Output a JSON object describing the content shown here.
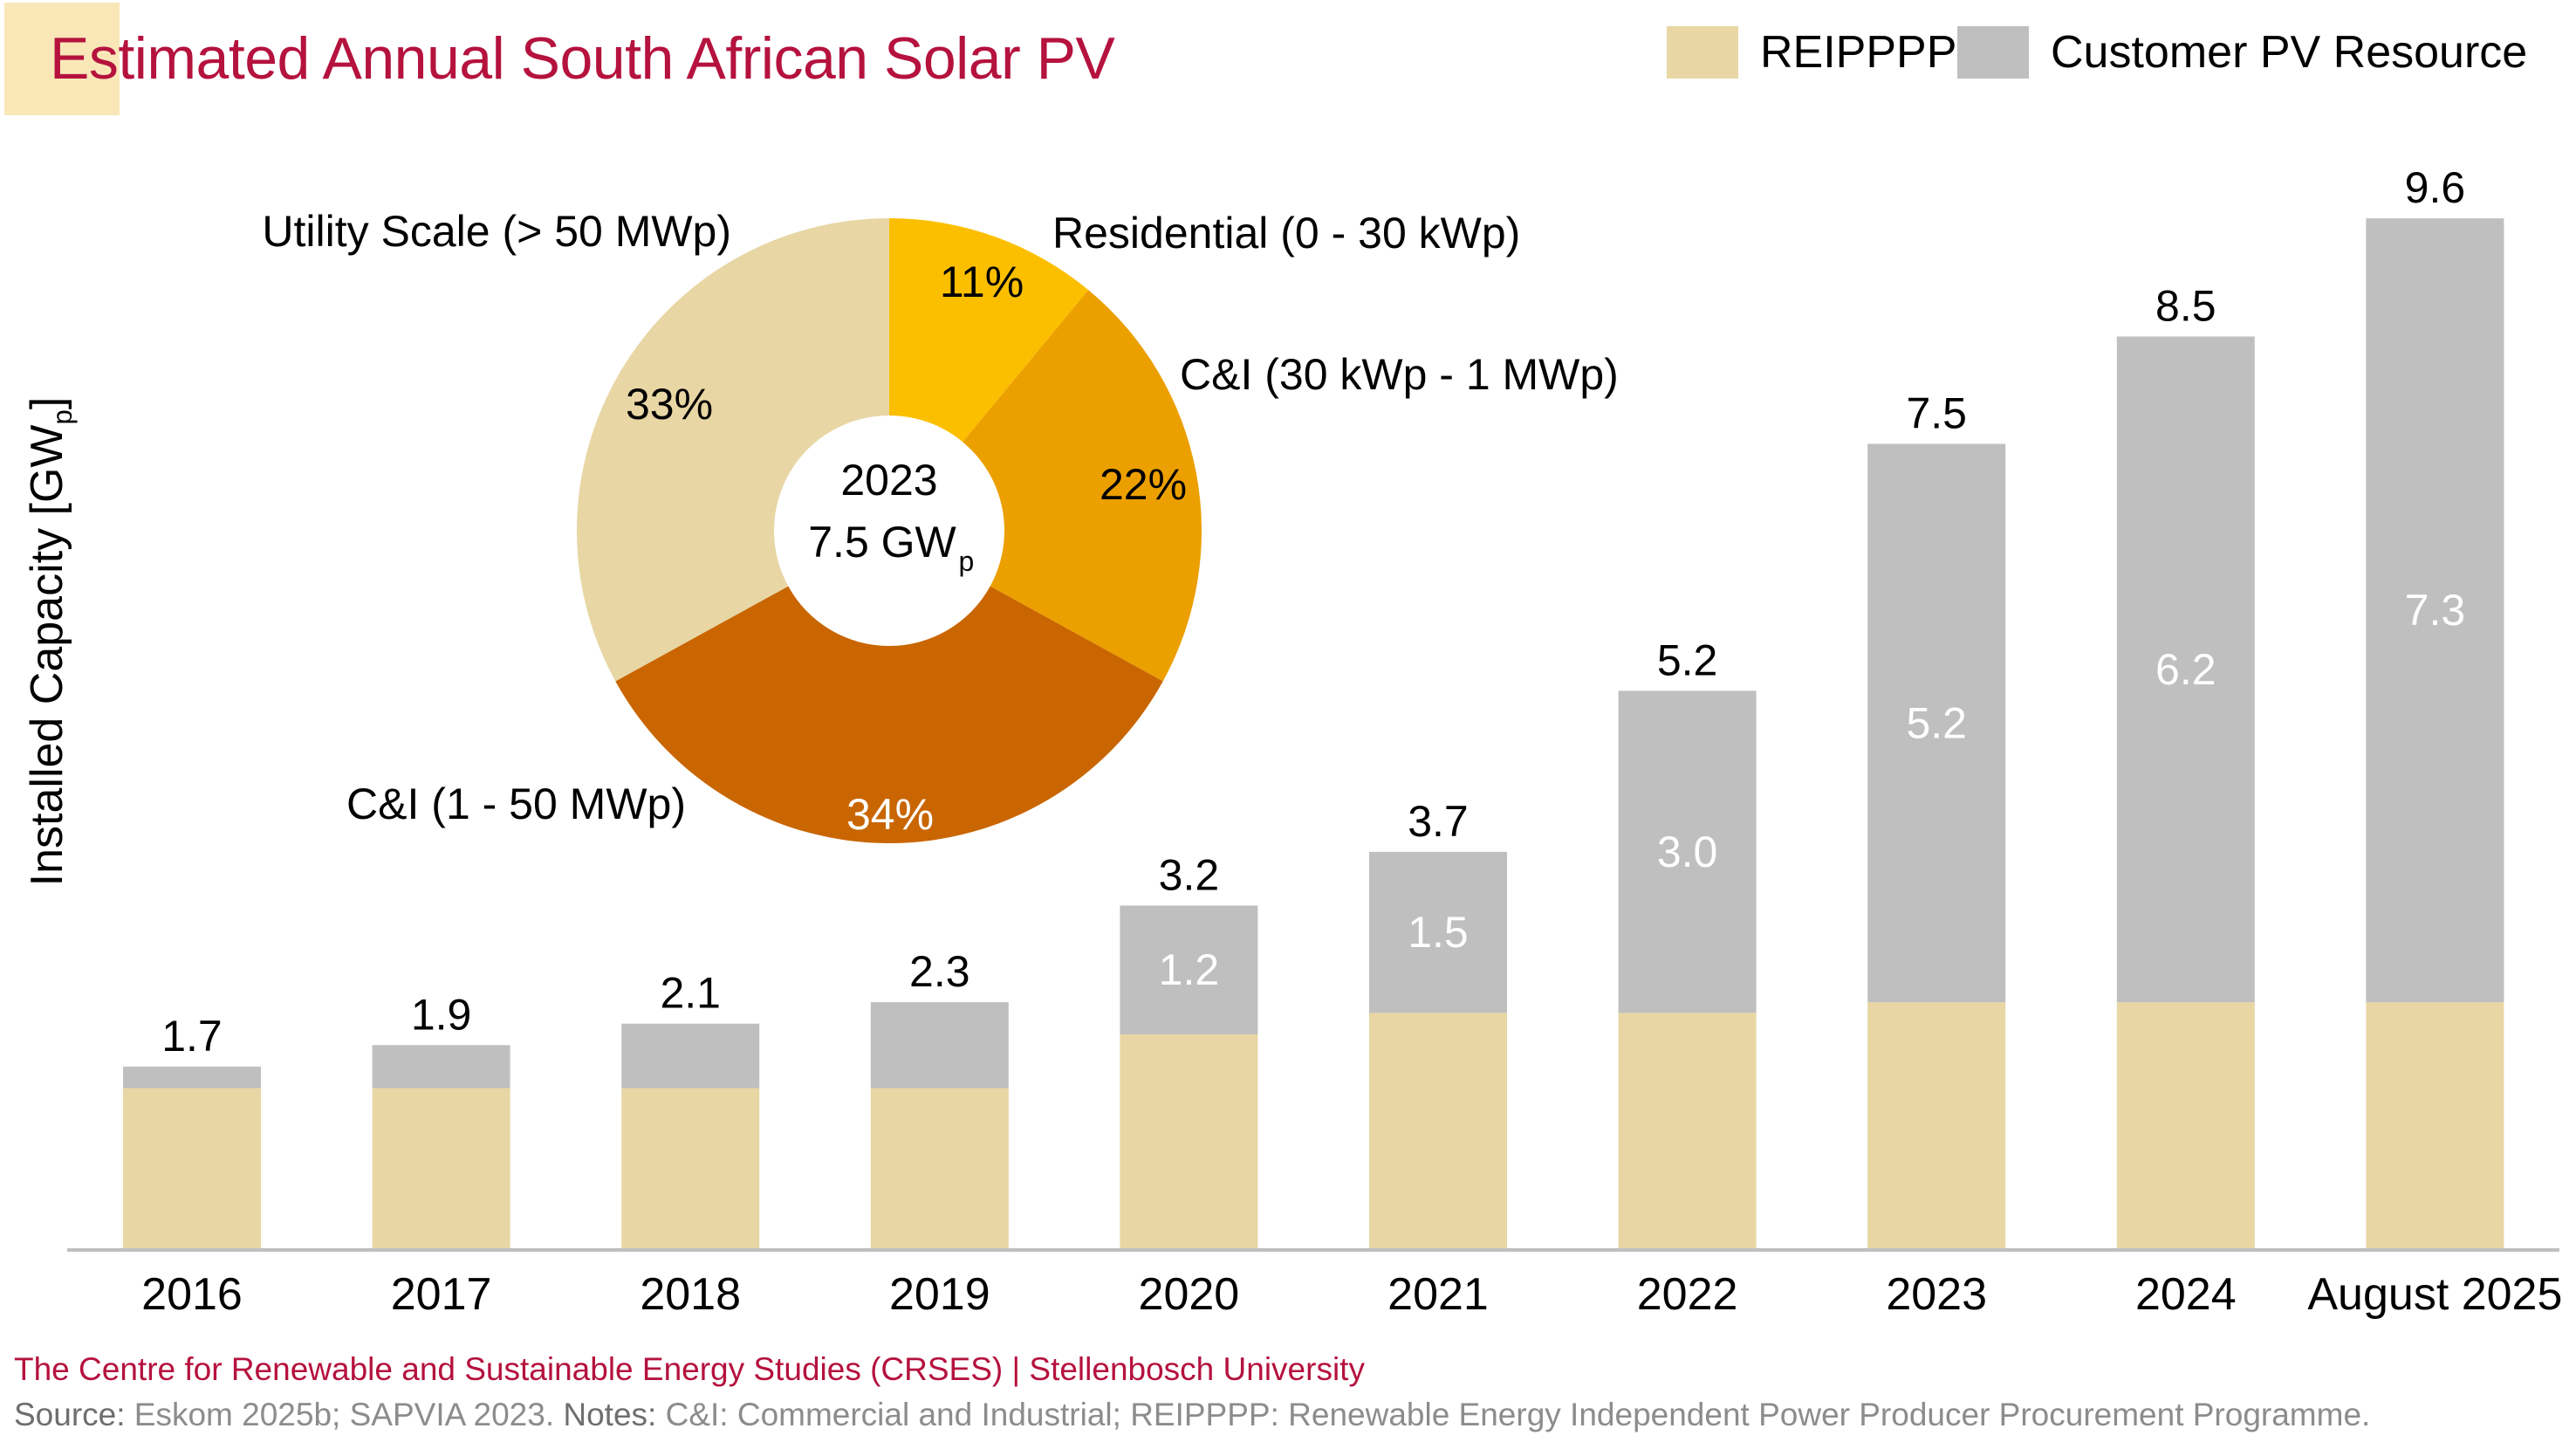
{
  "title": "Estimated Annual South African Solar PV",
  "legend": [
    {
      "label": "REIPPPP",
      "color": "#E8D6A4"
    },
    {
      "label": "Customer PV Resource",
      "color": "#BFBFBF"
    }
  ],
  "footer": {
    "org_line": "The Centre for Renewable and Sustainable Energy Studies (CRSES) | Stellenbosch University",
    "source_label": "Source:",
    "source_text": " Eskom 2025b; SAPVIA 2023.",
    "notes_label": " Notes:",
    "notes_text": " C&I: Commercial and Industrial; REIPPPP: Renewable Energy Independent Power Producer Procurement Programme."
  },
  "chart_data": [
    {
      "type": "bar",
      "stacked": true,
      "title": "Estimated Annual South African Solar PV",
      "ylabel": "Installed Capacity [GWp]",
      "ylabel_main": "Installed Capacity [GW",
      "ylabel_sub": "p",
      "ylabel_end": "]",
      "xlabel": "",
      "ylim": [
        0,
        10
      ],
      "grid": false,
      "legend_position": "top-right",
      "categories": [
        "2016",
        "2017",
        "2018",
        "2019",
        "2020",
        "2021",
        "2022",
        "2023",
        "2024",
        "August 2025"
      ],
      "series": [
        {
          "name": "REIPPPP",
          "color": "#E8D6A4",
          "values": [
            1.5,
            1.5,
            1.5,
            1.5,
            2.0,
            2.2,
            2.2,
            2.3,
            2.3,
            2.3
          ]
        },
        {
          "name": "Customer PV Resource",
          "color": "#BFBFBF",
          "values": [
            0.2,
            0.4,
            0.6,
            0.8,
            1.2,
            1.5,
            3.0,
            5.2,
            6.2,
            7.3
          ]
        }
      ],
      "totals": [
        1.7,
        1.9,
        2.1,
        2.3,
        3.2,
        3.7,
        5.2,
        7.5,
        8.5,
        9.6
      ],
      "total_labels": [
        "1.7",
        "1.9",
        "2.1",
        "2.3",
        "3.2",
        "3.7",
        "5.2",
        "7.5",
        "8.5",
        "9.6"
      ],
      "segment_labels": [
        null,
        null,
        null,
        null,
        "1.2",
        "1.5",
        "3.0",
        "5.2",
        "6.2",
        "7.3"
      ]
    },
    {
      "type": "pie",
      "donut": true,
      "center_year": "2023",
      "center_value": "7.5 GW",
      "center_value_sub": "p",
      "slices": [
        {
          "label": "Residential (0 - 30 kWp)",
          "value": 11,
          "pct_label": "11%",
          "color": "#FCBF00",
          "pct_text_color": "#000000"
        },
        {
          "label": "C&I (30 kWp - 1 MWp)",
          "value": 22,
          "pct_label": "22%",
          "color": "#ECA000",
          "pct_text_color": "#000000"
        },
        {
          "label": "C&I (1 - 50 MWp)",
          "value": 34,
          "pct_label": "34%",
          "color": "#C96602",
          "pct_text_color": "#FFFFFF"
        },
        {
          "label": "Utility Scale (> 50 MWp)",
          "value": 33,
          "pct_label": "33%",
          "color": "#E8D6A4",
          "pct_text_color": "#000000"
        }
      ]
    }
  ]
}
